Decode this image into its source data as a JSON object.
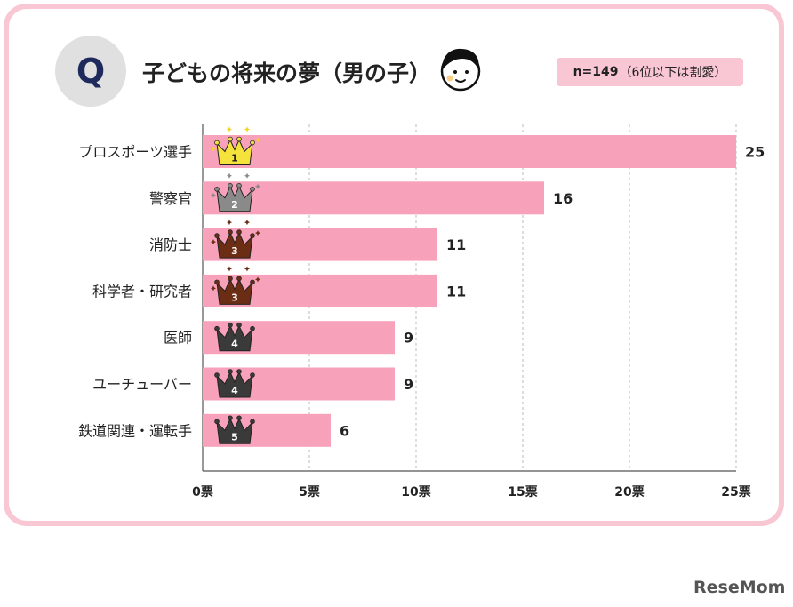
{
  "title": "子どもの将来の夢（男の子）",
  "q_label": "Q",
  "note_n": "n=149",
  "note_rest": "（6位以下は割愛）",
  "watermark": "ReseMom",
  "colors": {
    "bar": "#f7a1bb",
    "border": "#f9c6d3",
    "gold": "#f5e23a",
    "silver": "#8a8a8a",
    "bronze": "#6b2d14",
    "dark": "#3a3a3a"
  },
  "chart_data": {
    "type": "bar",
    "orientation": "horizontal",
    "categories": [
      "プロスポーツ選手",
      "警察官",
      "消防士",
      "科学者・研究者",
      "医師",
      "ユーチューバー",
      "鉄道関連・運転手"
    ],
    "values": [
      25,
      16,
      11,
      11,
      9,
      9,
      6
    ],
    "value_labels": [
      "25",
      "16",
      "11",
      "11",
      "9",
      "9",
      "6"
    ],
    "ranks": [
      "1",
      "2",
      "3",
      "3",
      "4",
      "4",
      "5"
    ],
    "xlim": [
      0,
      25
    ],
    "xticks": [
      0,
      5,
      10,
      15,
      20,
      25
    ],
    "xtick_labels": [
      "0票",
      "5票",
      "10票",
      "15票",
      "20票",
      "25票"
    ],
    "grid": "vertical dashed"
  }
}
